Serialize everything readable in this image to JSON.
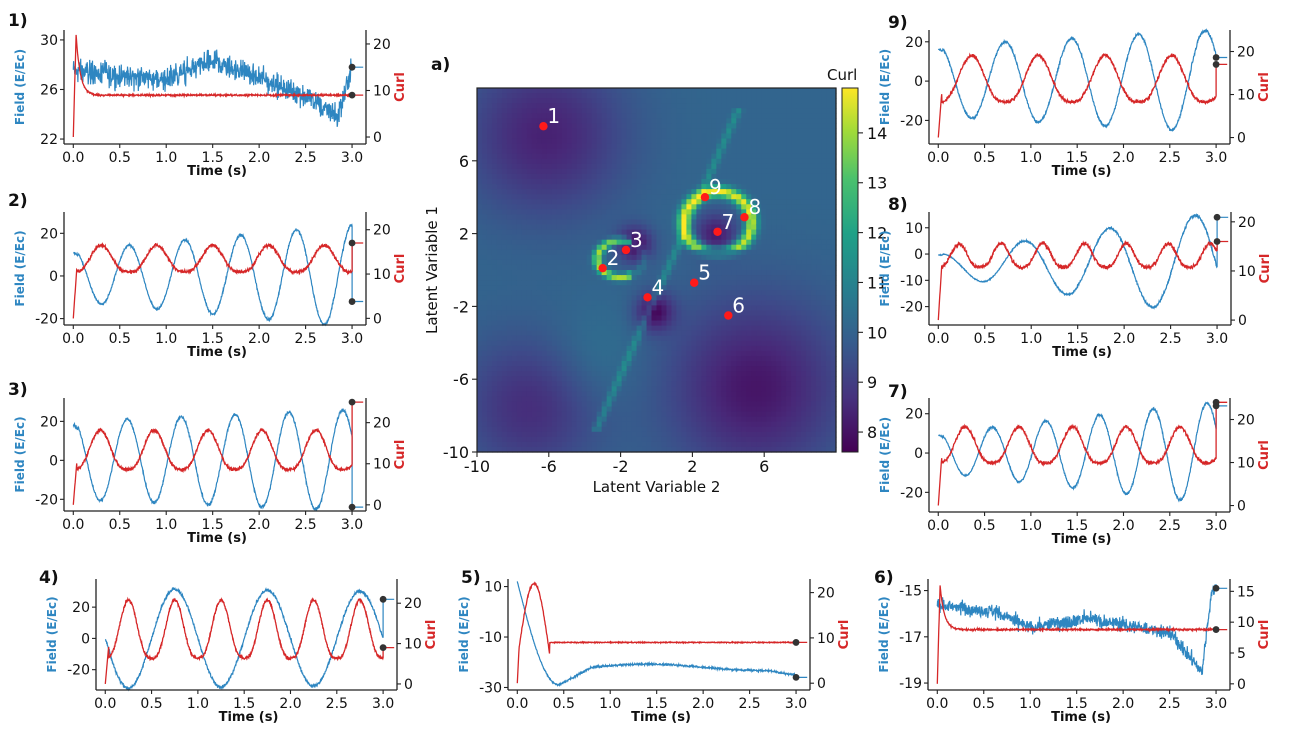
{
  "colors": {
    "field": "#2e86c1",
    "curl": "#d62728",
    "marker": "#333333",
    "colormap": "viridis"
  },
  "chart_data": [
    {
      "type": "heatmap",
      "panel_label": "a)",
      "xlabel": "Latent Variable 2",
      "ylabel": "Latent Variable 1",
      "xlim": [
        -10,
        10
      ],
      "ylim": [
        -10,
        10
      ],
      "xticks": [
        -10,
        -6,
        -2,
        2,
        6
      ],
      "yticks": [
        -10,
        -6,
        -2,
        2,
        6
      ],
      "colorbar": {
        "label": "Curl",
        "ticks": [
          8,
          9,
          10,
          11,
          12,
          13,
          14
        ],
        "range": [
          7.6,
          14.9
        ]
      },
      "points": [
        {
          "label": "1",
          "x": -6.3,
          "y": 7.9
        },
        {
          "label": "2",
          "x": -3.0,
          "y": 0.1
        },
        {
          "label": "3",
          "x": -1.7,
          "y": 1.1
        },
        {
          "label": "4",
          "x": -0.5,
          "y": -1.5
        },
        {
          "label": "5",
          "x": 2.1,
          "y": -0.7
        },
        {
          "label": "6",
          "x": 4.0,
          "y": -2.5
        },
        {
          "label": "7",
          "x": 3.4,
          "y": 2.1
        },
        {
          "label": "8",
          "x": 4.9,
          "y": 2.9
        },
        {
          "label": "9",
          "x": 2.7,
          "y": 4.0
        }
      ]
    },
    {
      "type": "line",
      "panel_label": "1)",
      "xlabel": "Time (s)",
      "ylabel_left": "Field (E/Ec)",
      "ylabel_right": "Curl",
      "xlim": [
        -0.1,
        3.15
      ],
      "xticks": [
        0.0,
        0.5,
        1.0,
        1.5,
        2.0,
        2.5,
        3.0
      ],
      "ylim_left": [
        21.6,
        30.8
      ],
      "yticks_left": [
        22,
        26,
        30
      ],
      "ylim_right": [
        -1.5,
        23
      ],
      "yticks_right": [
        0,
        10,
        20
      ],
      "field": {
        "kind": "noisy",
        "base": 27.2,
        "noise": 1.4,
        "drift": [
          [
            0,
            27.5
          ],
          [
            1.0,
            26.8
          ],
          [
            1.5,
            28.3
          ],
          [
            2.5,
            25.5
          ],
          [
            2.85,
            23.8
          ],
          [
            3.0,
            27.8
          ]
        ],
        "end": 27.8
      },
      "curl": {
        "kind": "settle",
        "start": 0,
        "peak": 22,
        "level": 9,
        "noise": 0.25
      }
    },
    {
      "type": "line",
      "panel_label": "2)",
      "xlabel": "Time (s)",
      "ylabel_left": "Field (E/Ec)",
      "ylabel_right": "Curl",
      "xlim": [
        -0.1,
        3.15
      ],
      "xticks": [
        0.0,
        0.5,
        1.0,
        1.5,
        2.0,
        2.5,
        3.0
      ],
      "ylim_left": [
        -23,
        30
      ],
      "yticks_left": [
        -20,
        0,
        20
      ],
      "ylim_right": [
        -1.5,
        24
      ],
      "yticks_right": [
        0,
        10,
        20
      ],
      "field": {
        "kind": "osc",
        "period": 0.6,
        "amp": [
          12,
          24
        ],
        "offset": 0,
        "end": -12
      },
      "curl": {
        "kind": "spiky",
        "period": 0.6,
        "base": 12,
        "amp": 5,
        "end": 17
      }
    },
    {
      "type": "line",
      "panel_label": "3)",
      "xlabel": "Time (s)",
      "ylabel_left": "Field (E/Ec)",
      "ylabel_right": "Curl",
      "xlim": [
        -0.1,
        3.15
      ],
      "xticks": [
        0.0,
        0.5,
        1.0,
        1.5,
        2.0,
        2.5,
        3.0
      ],
      "ylim_left": [
        -26,
        32
      ],
      "yticks_left": [
        -20,
        0,
        20
      ],
      "ylim_right": [
        -1.5,
        26
      ],
      "yticks_right": [
        0,
        10,
        20
      ],
      "field": {
        "kind": "osc",
        "period": 0.58,
        "amp": [
          20,
          26
        ],
        "offset": 0,
        "end": -24
      },
      "curl": {
        "kind": "spiky",
        "period": 0.58,
        "base": 11,
        "amp": 8,
        "end": 25
      }
    },
    {
      "type": "line",
      "panel_label": "4)",
      "xlabel": "Time (s)",
      "ylabel_left": "Field (E/Ec)",
      "ylabel_right": "Curl",
      "xlim": [
        -0.1,
        3.15
      ],
      "xticks": [
        0.0,
        0.5,
        1.0,
        1.5,
        2.0,
        2.5,
        3.0
      ],
      "ylim_left": [
        -33,
        38
      ],
      "yticks_left": [
        -20,
        0,
        20
      ],
      "ylim_right": [
        -1.5,
        26
      ],
      "yticks_right": [
        0,
        10,
        20
      ],
      "field": {
        "kind": "osc",
        "period": 1.0,
        "amp": [
          32,
          30
        ],
        "offset": 0,
        "phase": 0.25,
        "end": 25
      },
      "curl": {
        "kind": "spiky",
        "period": 0.5,
        "base": 10,
        "amp": 12,
        "end": 9
      }
    },
    {
      "type": "line",
      "panel_label": "5)",
      "xlabel": "Time (s)",
      "ylabel_left": "Field (E/Ec)",
      "ylabel_right": "Curl",
      "xlim": [
        -0.1,
        3.15
      ],
      "xticks": [
        0.0,
        0.5,
        1.0,
        1.5,
        2.0,
        2.5,
        3.0
      ],
      "ylim_left": [
        -31,
        13
      ],
      "yticks_left": [
        -30,
        -10,
        10
      ],
      "ylim_right": [
        -1.5,
        23
      ],
      "yticks_right": [
        0,
        10,
        20
      ],
      "field": {
        "kind": "decay",
        "start": 12,
        "min": -29,
        "level": -22,
        "end": -26
      },
      "curl": {
        "kind": "bump",
        "start": 0,
        "peak": 21,
        "level": 9,
        "end": 9
      }
    },
    {
      "type": "line",
      "panel_label": "6)",
      "xlabel": "Time (s)",
      "ylabel_left": "Field (E/Ec)",
      "ylabel_right": "Curl",
      "xlim": [
        -0.1,
        3.15
      ],
      "xticks": [
        0.0,
        0.5,
        1.0,
        1.5,
        2.0,
        2.5,
        3.0
      ],
      "ylim_left": [
        -19.3,
        -14.5
      ],
      "yticks_left": [
        -19,
        -17,
        -15
      ],
      "ylim_right": [
        -1,
        17
      ],
      "yticks_right": [
        0,
        5,
        10,
        15
      ],
      "field": {
        "kind": "noisy",
        "base": -16.0,
        "noise": 0.45,
        "drift": [
          [
            0,
            -15.6
          ],
          [
            0.6,
            -15.9
          ],
          [
            1.0,
            -16.6
          ],
          [
            1.6,
            -16.2
          ],
          [
            2.5,
            -16.8
          ],
          [
            2.85,
            -18.5
          ],
          [
            2.95,
            -15.0
          ],
          [
            3.0,
            -14.9
          ]
        ],
        "end": -14.9
      },
      "curl": {
        "kind": "settle",
        "start": 0,
        "peak": 16,
        "level": 8.8,
        "noise": 0.2
      }
    },
    {
      "type": "line",
      "panel_label": "7)",
      "xlabel": "Time (s)",
      "ylabel_left": "Field (E/Ec)",
      "ylabel_right": "Curl",
      "xlim": [
        -0.1,
        3.15
      ],
      "xticks": [
        0.0,
        0.5,
        1.0,
        1.5,
        2.0,
        2.5,
        3.0
      ],
      "ylim_left": [
        -30,
        28
      ],
      "yticks_left": [
        -20,
        0,
        20
      ],
      "ylim_right": [
        -1.5,
        25
      ],
      "yticks_right": [
        0,
        10,
        20
      ],
      "field": {
        "kind": "osc",
        "period": 0.58,
        "amp": [
          10,
          26
        ],
        "offset": 0,
        "end": 24
      },
      "curl": {
        "kind": "spiky",
        "period": 0.58,
        "base": 12,
        "amp": 7,
        "end": 24
      }
    },
    {
      "type": "line",
      "panel_label": "8)",
      "xlabel": "Time (s)",
      "ylabel_left": "Field (E/Ec)",
      "ylabel_right": "Curl",
      "xlim": [
        -0.1,
        3.15
      ],
      "xticks": [
        0.0,
        0.5,
        1.0,
        1.5,
        2.0,
        2.5,
        3.0
      ],
      "ylim_left": [
        -27,
        16
      ],
      "yticks_left": [
        -20,
        -10,
        0,
        10
      ],
      "ylim_right": [
        -1,
        22
      ],
      "yticks_right": [
        0,
        10,
        20
      ],
      "field": {
        "kind": "osc",
        "period": 0.92,
        "amp": [
          4,
          20
        ],
        "offset": -4,
        "end": 14
      },
      "curl": {
        "kind": "spiky",
        "period": 0.45,
        "base": 12,
        "amp": 4,
        "end": 16
      }
    },
    {
      "type": "line",
      "panel_label": "9)",
      "xlabel": "Time (s)",
      "ylabel_left": "Field (E/Ec)",
      "ylabel_right": "Curl",
      "xlim": [
        -0.1,
        3.15
      ],
      "xticks": [
        0.0,
        0.5,
        1.0,
        1.5,
        2.0,
        2.5,
        3.0
      ],
      "ylim_left": [
        -32,
        26
      ],
      "yticks_left": [
        -20,
        0,
        20
      ],
      "ylim_right": [
        -1.5,
        25
      ],
      "yticks_right": [
        0,
        10,
        20
      ],
      "field": {
        "kind": "osc",
        "period": 0.72,
        "amp": [
          18,
          26
        ],
        "offset": 0,
        "end": 12
      },
      "curl": {
        "kind": "spiky",
        "period": 0.72,
        "base": 11,
        "amp": 9,
        "end": 17
      }
    }
  ]
}
